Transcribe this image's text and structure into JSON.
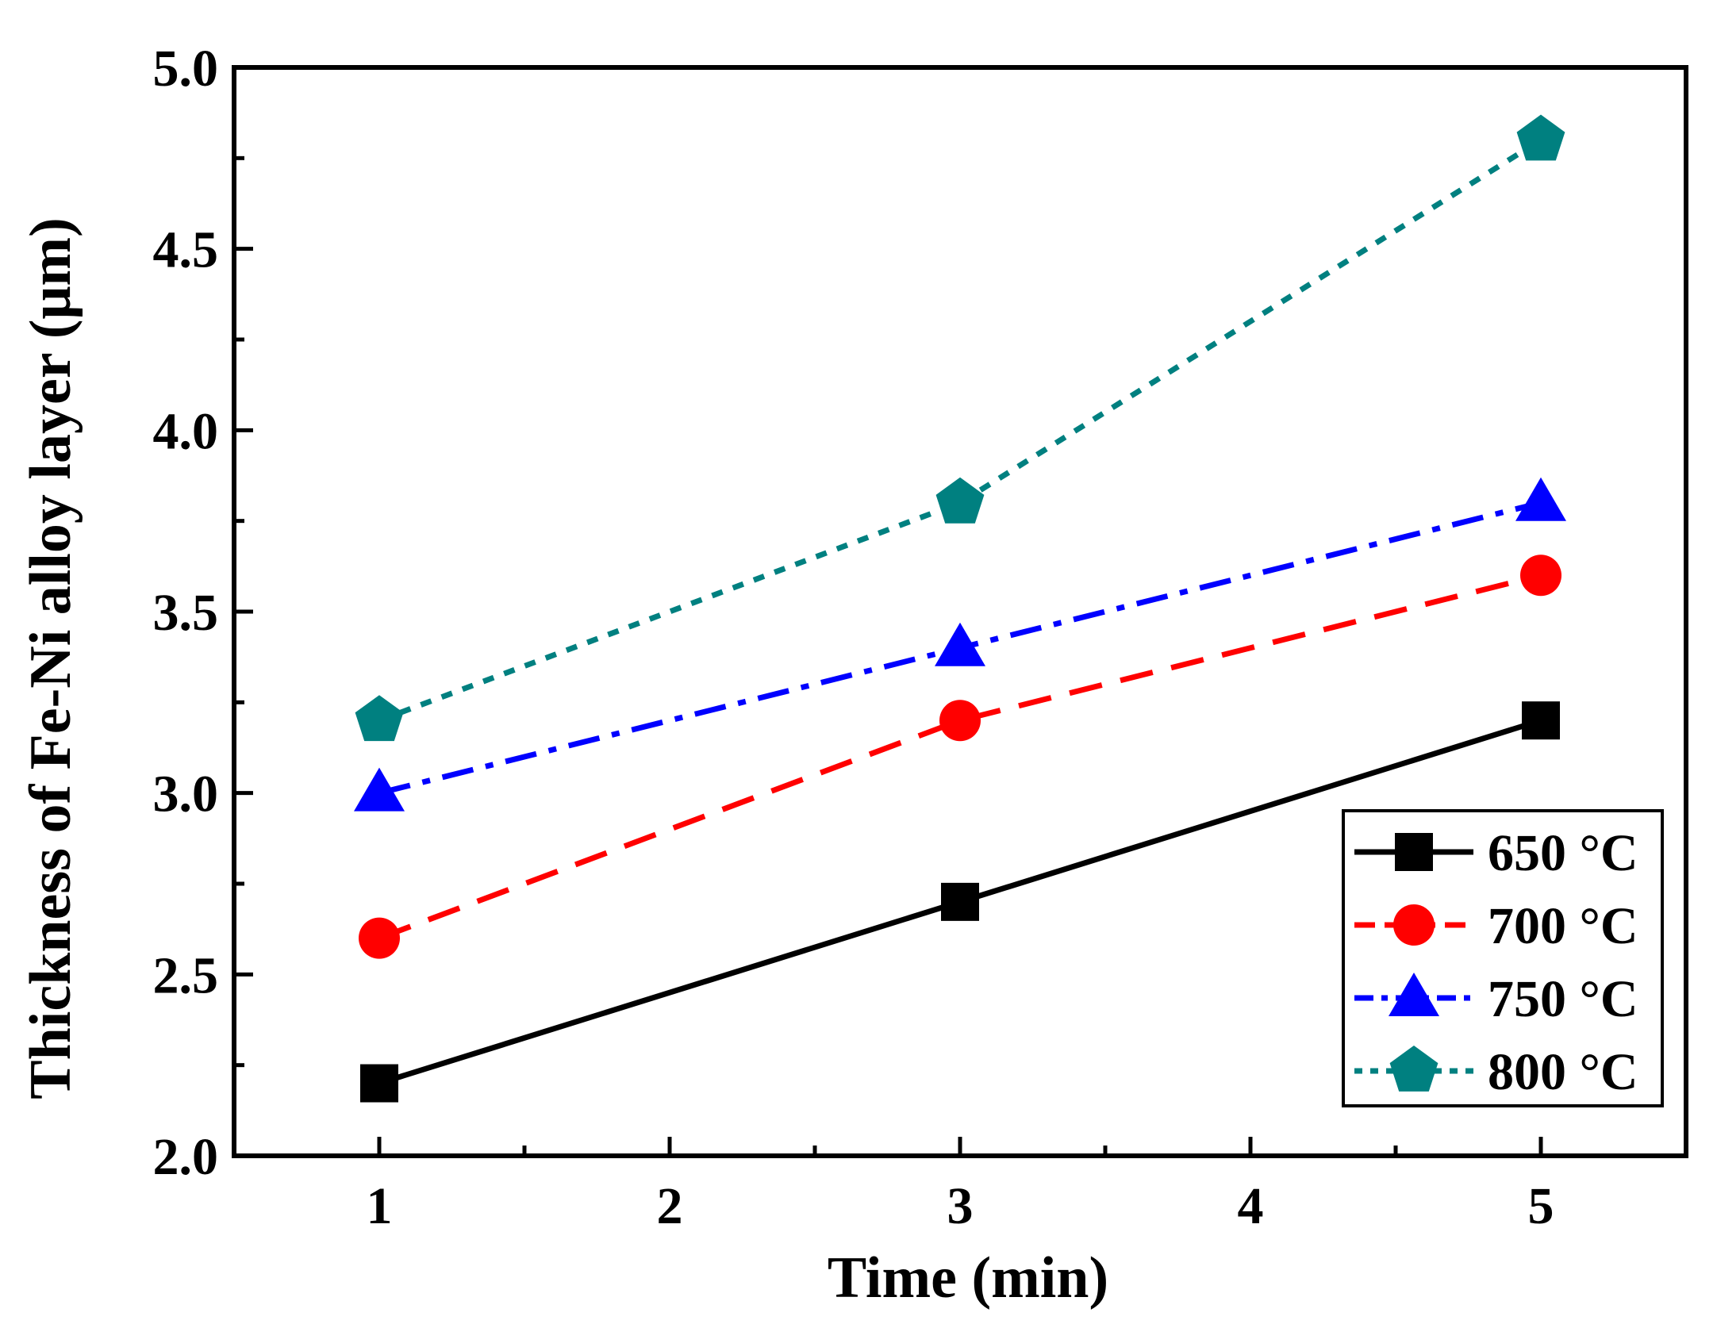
{
  "chart_data": {
    "type": "line",
    "title": "",
    "xlabel": "Time (min)",
    "ylabel": "Thickness of Fe-Ni alloy layer (μm)",
    "xlim": [
      0.5,
      5.5
    ],
    "ylim": [
      2.0,
      5.0
    ],
    "xticks": [
      1,
      2,
      3,
      4,
      5
    ],
    "xtick_labels": [
      "1",
      "2",
      "3",
      "4",
      "5"
    ],
    "yticks": [
      2.0,
      2.5,
      3.0,
      3.5,
      4.0,
      4.5,
      5.0
    ],
    "ytick_labels": [
      "2.0",
      "2.5",
      "3.0",
      "3.5",
      "4.0",
      "4.5",
      "5.0"
    ],
    "grid": false,
    "legend_position": "bottom-right",
    "x": [
      1,
      3,
      5
    ],
    "series": [
      {
        "name": "650 °C",
        "values": [
          2.2,
          2.7,
          3.2
        ],
        "color": "#000000",
        "marker": "square",
        "line_style": "solid"
      },
      {
        "name": "700 °C",
        "values": [
          2.6,
          3.2,
          3.6
        ],
        "color": "#ff0000",
        "marker": "circle",
        "line_style": "dash"
      },
      {
        "name": "750 °C",
        "values": [
          3.0,
          3.4,
          3.8
        ],
        "color": "#0000ff",
        "marker": "triangle",
        "line_style": "dash-dot"
      },
      {
        "name": "800 °C",
        "values": [
          3.2,
          3.8,
          4.8
        ],
        "color": "#008080",
        "marker": "pentagon",
        "line_style": "dot"
      }
    ]
  }
}
